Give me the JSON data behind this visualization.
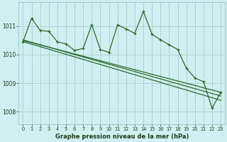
{
  "background_color": "#cff0f0",
  "grid_color": "#aacccc",
  "line_color": "#2d6a2d",
  "title": "Graphe pression niveau de la mer (hPa)",
  "xlim": [
    -0.5,
    23.5
  ],
  "ylim": [
    1007.55,
    1011.85
  ],
  "yticks": [
    1008,
    1009,
    1010,
    1011
  ],
  "xticks": [
    0,
    1,
    2,
    3,
    4,
    5,
    6,
    7,
    8,
    9,
    10,
    11,
    12,
    13,
    14,
    15,
    16,
    17,
    18,
    19,
    20,
    21,
    22,
    23
  ],
  "trend_line1": {
    "x": [
      0,
      23
    ],
    "y": [
      1010.52,
      1008.55
    ]
  },
  "trend_line2": {
    "x": [
      0,
      23
    ],
    "y": [
      1010.5,
      1008.68
    ]
  },
  "trend_line3": {
    "x": [
      0,
      23
    ],
    "y": [
      1010.46,
      1008.4
    ]
  },
  "main_series_x": [
    0,
    1,
    2,
    3,
    4,
    5,
    6,
    7,
    8,
    9,
    10,
    11,
    12,
    13,
    14,
    15,
    16,
    17,
    18,
    19,
    20,
    21,
    22,
    23
  ],
  "main_series_y": [
    1010.45,
    1011.28,
    1010.85,
    1010.82,
    1010.45,
    1010.38,
    1010.15,
    1010.22,
    1011.05,
    1010.18,
    1010.08,
    1011.05,
    1010.9,
    1010.75,
    1011.52,
    1010.72,
    1010.52,
    1010.35,
    1010.18,
    1009.52,
    1009.18,
    1009.05,
    1008.12,
    1008.68
  ]
}
